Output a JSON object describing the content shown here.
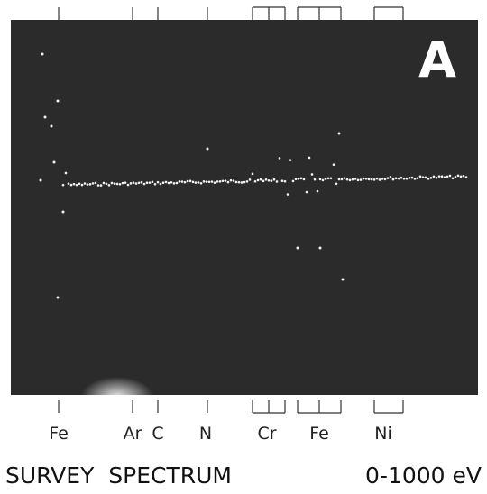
{
  "panel_label": "A",
  "peaks": [
    {
      "label": "Fe"
    },
    {
      "label": "Ar"
    },
    {
      "label": "C"
    },
    {
      "label": "N"
    },
    {
      "label": "Cr"
    },
    {
      "label": "Fe"
    },
    {
      "label": "Ni"
    }
  ],
  "caption": {
    "title": "SURVEY SPECTRUM",
    "range": "0-1000 eV"
  }
}
